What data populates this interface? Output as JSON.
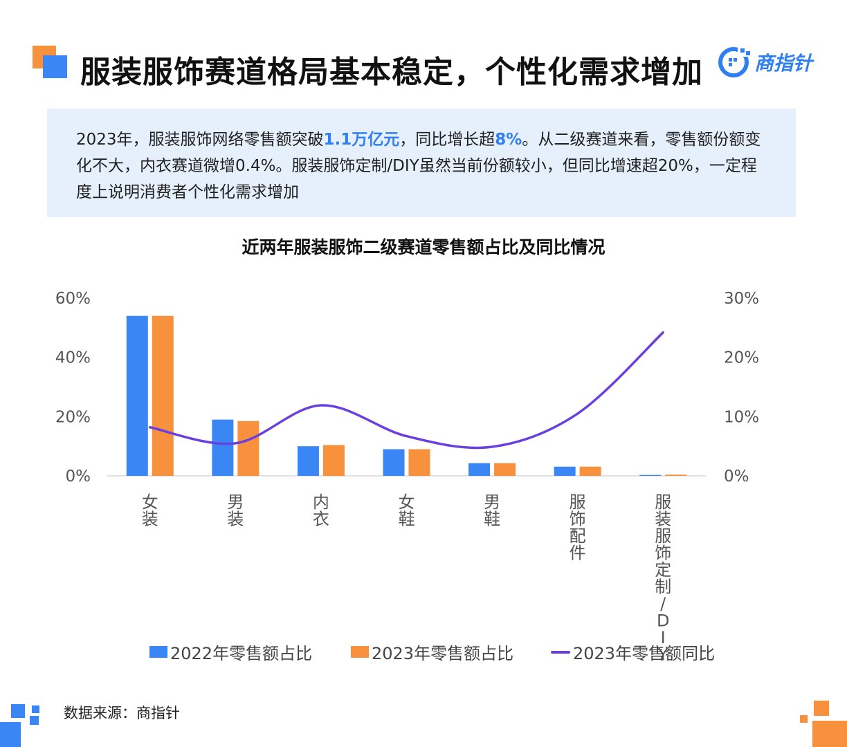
{
  "header": {
    "title": "服装服饰赛道格局基本稳定，个性化需求增加",
    "logo_text": "商指针"
  },
  "summary": {
    "part1": "2023年，服装服饰网络零售额突破",
    "hl1": "1.1万亿元",
    "part2": "，同比增长超",
    "hl2": "8%",
    "part3": "。从二级赛道来看，零售额份额变化不大，内衣赛道微增0.4%。服装服饰定制/DIY虽然当前份额较小，但同比增速超20%，一定程度上说明消费者个性化需求增加"
  },
  "colors": {
    "bar_2022": "#3b86f5",
    "bar_2023": "#f7913d",
    "line_2023": "#6a3fe0",
    "accent_blue": "#2f7ff2",
    "accent_orange": "#f7913d"
  },
  "chart_data": {
    "type": "bar",
    "title": "近两年服装服饰二级赛道零售额占比及同比情况",
    "categories": [
      "女装",
      "男装",
      "内衣",
      "女鞋",
      "男鞋",
      "服饰配件",
      "服装服饰定制/DIY"
    ],
    "series": [
      {
        "name": "2022年零售额占比",
        "type": "bar",
        "axis": "left",
        "values": [
          54,
          19,
          10,
          9,
          4.3,
          3.1,
          0.3
        ]
      },
      {
        "name": "2023年零售额占比",
        "type": "bar",
        "axis": "left",
        "values": [
          54,
          18.5,
          10.4,
          9,
          4.3,
          3.1,
          0.4
        ]
      },
      {
        "name": "2023年零售额同比",
        "type": "line",
        "axis": "right",
        "values": [
          8.2,
          5.5,
          11.9,
          6.7,
          4.9,
          10.5,
          24.2
        ]
      }
    ],
    "ylim": [
      0,
      60
    ],
    "y2lim": [
      0,
      30
    ],
    "yticks": [
      "0%",
      "20%",
      "40%",
      "60%"
    ],
    "y2ticks": [
      "0%",
      "10%",
      "20%",
      "30%"
    ],
    "grid": false,
    "legend": "bottom"
  },
  "footer": {
    "source": "数据来源：商指针"
  }
}
